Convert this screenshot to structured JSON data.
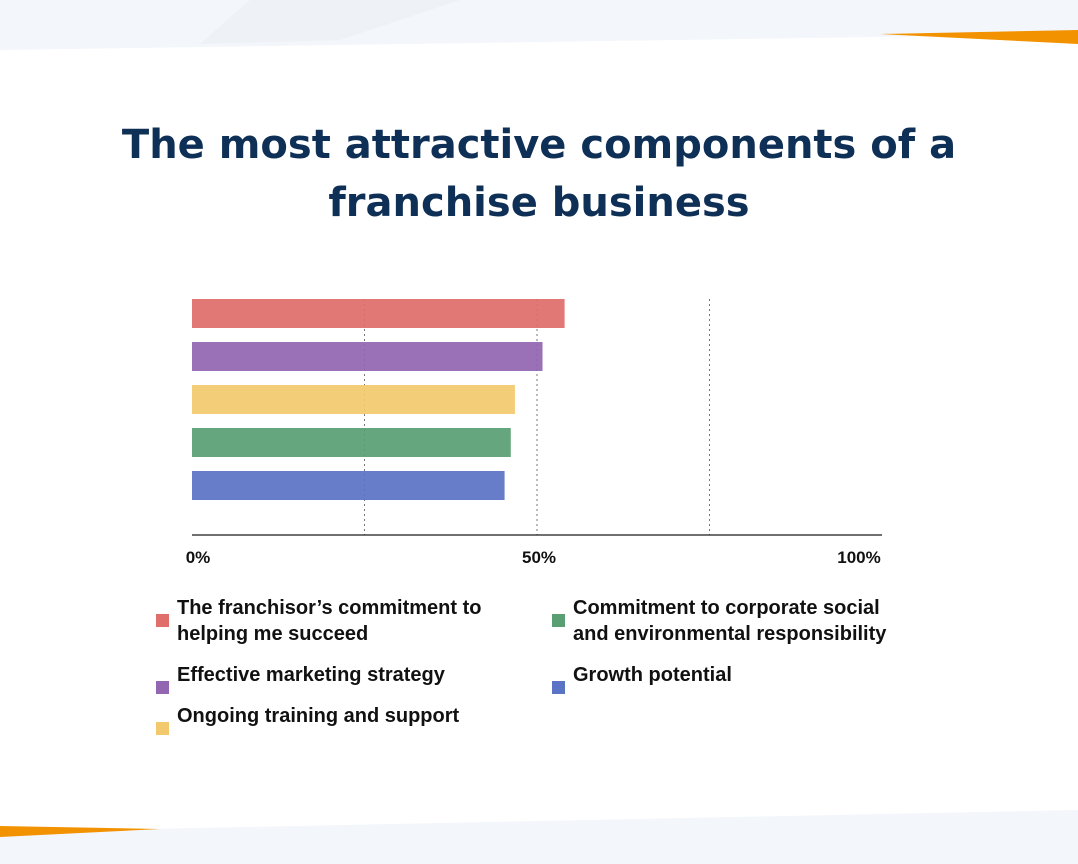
{
  "chart_data": {
    "type": "bar",
    "orientation": "horizontal",
    "title_lines": [
      "The most attractive components of a",
      "franchise business"
    ],
    "categories": [
      "The franchisor’s commitment to\nhelping me succeed",
      "Effective marketing strategy",
      "Ongoing training and support",
      "Commitment to corporate social\nand environmental responsibility",
      "Growth potential"
    ],
    "values": [
      54,
      50.8,
      46.8,
      46.2,
      45.3
    ],
    "colors": [
      "#e06e6a",
      "#9266b0",
      "#f2c96d",
      "#5a9f74",
      "#5b73c5"
    ],
    "xlim": [
      0,
      100
    ],
    "x_ticks": [
      "0%",
      "50%",
      "100%"
    ],
    "grid": "vertical dotted",
    "legend_position": "bottom"
  },
  "theme": {
    "title_color": "#0e2f56",
    "accent": "#f39200"
  }
}
